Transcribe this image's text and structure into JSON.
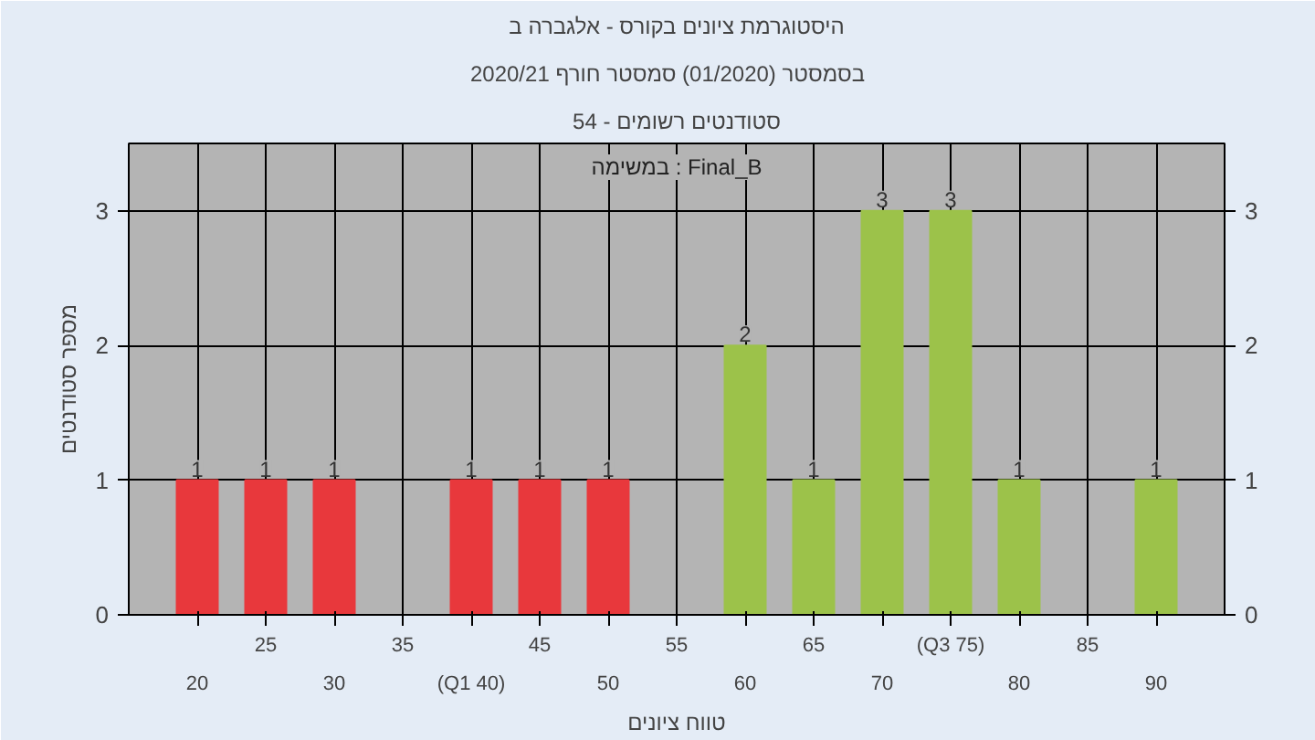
{
  "chart_data": {
    "type": "bar",
    "title": "היסטוגרמת ציונים בקורס - אלגברה ב",
    "subtitle": "בסמסטר  (01/2020)  סמסטר חורף  2020/21",
    "annotations": [
      "סטודנטים רשומים - 54",
      "במשימה : Final_B"
    ],
    "xlabel": "טווח ציונים",
    "ylabel": "מספר סטודנטים",
    "categories": [
      "20",
      "25",
      "30",
      "35",
      "(Q1 40)",
      "45",
      "50",
      "55",
      "60",
      "65",
      "70",
      "(Q3 75)",
      "80",
      "85",
      "90"
    ],
    "series": [
      {
        "values": [
          1,
          1,
          1,
          0,
          1,
          1,
          1,
          0,
          2,
          1,
          3,
          3,
          1,
          0,
          1
        ],
        "colors": [
          "#e8383c",
          "#e8383c",
          "#e8383c",
          "#e8383c",
          "#e8383c",
          "#e8383c",
          "#e8383c",
          "#9cc24a",
          "#9cc24a",
          "#9cc24a",
          "#9cc24a",
          "#9cc24a",
          "#9cc24a",
          "#9cc24a",
          "#9cc24a"
        ],
        "value_labels": [
          "1",
          "1",
          "1",
          null,
          "1",
          "1",
          "1",
          null,
          "2",
          "1",
          "3",
          "3",
          "1",
          null,
          "1"
        ]
      }
    ],
    "ylim": [
      0,
      3.5
    ],
    "yticks": [
      0,
      1,
      2,
      3
    ],
    "y2lim": [
      0,
      3.5
    ],
    "y2ticks": [
      0,
      1,
      2,
      3
    ],
    "grid": true
  }
}
